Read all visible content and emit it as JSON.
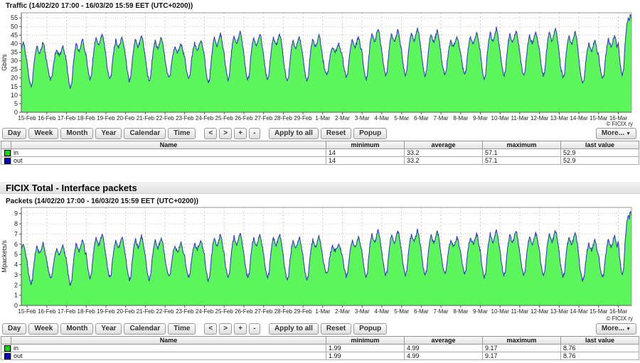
{
  "traffic": {
    "title": "Traffic (14/02/20 17:00 - 16/03/20 15:59 EET (UTC+0200))",
    "copyright": "© FICIX ry",
    "table": {
      "rows": [
        {
          "name": "in",
          "color": "#00e000",
          "min": "14",
          "avg": "33.2",
          "max": "57.1",
          "last": "52.9"
        },
        {
          "name": "out",
          "color": "#0000d8",
          "min": "14",
          "avg": "33.2",
          "max": "57.1",
          "last": "52.9"
        }
      ]
    }
  },
  "section_heading": "FICIX Total - Interface packets",
  "packets": {
    "title": "Packets (14/02/20 17:00 - 16/03/20 15:59 EET (UTC+0200))",
    "copyright": "© FICIX ry",
    "table": {
      "rows": [
        {
          "name": "in",
          "color": "#00e000",
          "min": "1.99",
          "avg": "4.99",
          "max": "9.17",
          "last": "8.76"
        },
        {
          "name": "out",
          "color": "#0000d8",
          "min": "1.99",
          "avg": "4.99",
          "max": "9.17",
          "last": "8.76"
        }
      ]
    }
  },
  "table_columns": {
    "color": "",
    "name": "Name",
    "min": "minimum",
    "avg": "average",
    "max": "maximum",
    "last": "last value"
  },
  "controls": {
    "period_buttons": [
      "Day",
      "Week",
      "Month",
      "Year",
      "Calendar",
      "Time"
    ],
    "nav_buttons": [
      "<",
      ">",
      "+",
      "-"
    ],
    "action_buttons": [
      "Apply to all",
      "Reset",
      "Popup"
    ],
    "more_label": "More...",
    "more_arrow": "▼"
  },
  "chart_data": [
    {
      "type": "area",
      "title": "Traffic (14/02/20 17:00 - 16/03/20 15:59 EET (UTC+0200))",
      "time_start": "14/02/20 17:00",
      "time_end": "16/03/20 15:59",
      "ylabel": "Gbit/s",
      "xlabel": "",
      "ylim": [
        0,
        58
      ],
      "yticks": [
        0,
        5,
        10,
        15,
        20,
        25,
        30,
        35,
        40,
        45,
        50,
        55
      ],
      "x_categories": [
        "15-Feb",
        "16-Feb",
        "17-Feb",
        "18-Feb",
        "19-Feb",
        "20-Feb",
        "21-Feb",
        "22-Feb",
        "23-Feb",
        "24-Feb",
        "25-Feb",
        "26-Feb",
        "27-Feb",
        "28-Feb",
        "29-Feb",
        "1-Mar",
        "2-Mar",
        "3-Mar",
        "4-Mar",
        "5-Mar",
        "6-Mar",
        "7-Mar",
        "8-Mar",
        "9-Mar",
        "10-Mar",
        "11-Mar",
        "12-Mar",
        "13-Mar",
        "14-Mar",
        "15-Mar",
        "16-Mar"
      ],
      "grid": true,
      "legend_position": "table-below",
      "fill_color": "#5cf65c",
      "line_color": "#3a3ad0",
      "series": [
        {
          "name": "in",
          "style": "green-area",
          "daily_peaks": [
            41,
            38,
            43,
            46,
            44,
            45,
            44,
            40,
            42,
            46,
            47,
            46,
            46,
            44,
            45,
            40,
            44,
            49,
            48,
            49,
            48,
            44,
            46,
            49,
            48,
            47,
            49,
            47,
            42,
            45,
            57
          ],
          "daily_valleys": [
            15,
            19,
            14,
            19,
            19,
            18,
            18,
            20,
            20,
            17,
            19,
            19,
            19,
            18,
            18,
            22,
            20,
            19,
            21,
            21,
            21,
            22,
            22,
            19,
            21,
            21,
            21,
            20,
            17,
            19,
            21
          ]
        },
        {
          "name": "out",
          "style": "blue-line",
          "note": "overlaps 'in' (identical values per summary table)"
        }
      ],
      "summary": {
        "minimum": 14,
        "average": 33.2,
        "maximum": 57.1,
        "last_value": 52.9
      }
    },
    {
      "type": "area",
      "title": "Packets (14/02/20 17:00 - 16/03/20 15:59 EET (UTC+0200))",
      "time_start": "14/02/20 17:00",
      "time_end": "16/03/20 15:59",
      "ylabel": "Mpackets/s",
      "xlabel": "",
      "ylim": [
        0,
        9.6
      ],
      "yticks": [
        0,
        1,
        2,
        3,
        4,
        5,
        6,
        7,
        8,
        9
      ],
      "x_categories": [
        "15-Feb",
        "16-Feb",
        "17-Feb",
        "18-Feb",
        "19-Feb",
        "20-Feb",
        "21-Feb",
        "22-Feb",
        "23-Feb",
        "24-Feb",
        "25-Feb",
        "26-Feb",
        "27-Feb",
        "28-Feb",
        "29-Feb",
        "1-Mar",
        "2-Mar",
        "3-Mar",
        "4-Mar",
        "5-Mar",
        "6-Mar",
        "7-Mar",
        "8-Mar",
        "9-Mar",
        "10-Mar",
        "11-Mar",
        "12-Mar",
        "13-Mar",
        "14-Mar",
        "15-Mar",
        "16-Mar"
      ],
      "grid": true,
      "legend_position": "table-below",
      "fill_color": "#5cf65c",
      "line_color": "#3a3ad0",
      "series": [
        {
          "name": "in",
          "style": "green-area",
          "daily_peaks": [
            6.1,
            5.8,
            6.5,
            7.0,
            6.7,
            6.8,
            6.7,
            6.1,
            6.4,
            7.0,
            7.1,
            7.0,
            7.0,
            6.7,
            6.8,
            6.1,
            6.7,
            7.4,
            7.3,
            7.4,
            7.3,
            6.7,
            7.0,
            7.4,
            7.3,
            7.1,
            7.4,
            7.1,
            6.4,
            6.8,
            9.2
          ],
          "daily_valleys": [
            2.1,
            2.7,
            2.0,
            2.7,
            2.7,
            2.5,
            2.5,
            2.8,
            2.8,
            2.4,
            2.7,
            2.7,
            2.7,
            2.5,
            2.5,
            3.1,
            2.8,
            2.7,
            2.9,
            2.9,
            2.9,
            3.1,
            3.1,
            2.7,
            2.9,
            2.9,
            2.9,
            2.8,
            2.4,
            2.7,
            2.9
          ]
        },
        {
          "name": "out",
          "style": "blue-line",
          "note": "overlaps 'in' (identical values per summary table)"
        }
      ],
      "summary": {
        "minimum": 1.99,
        "average": 4.99,
        "maximum": 9.17,
        "last_value": 8.76
      }
    }
  ]
}
